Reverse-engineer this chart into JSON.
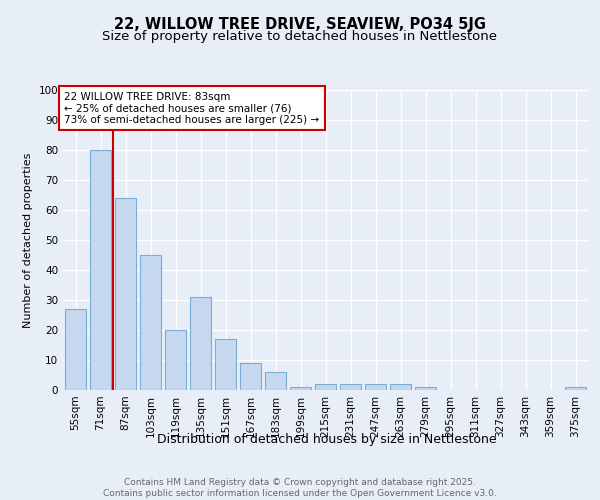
{
  "title1": "22, WILLOW TREE DRIVE, SEAVIEW, PO34 5JG",
  "title2": "Size of property relative to detached houses in Nettlestone",
  "xlabel": "Distribution of detached houses by size in Nettlestone",
  "ylabel": "Number of detached properties",
  "categories": [
    "55sqm",
    "71sqm",
    "87sqm",
    "103sqm",
    "119sqm",
    "135sqm",
    "151sqm",
    "167sqm",
    "183sqm",
    "199sqm",
    "215sqm",
    "231sqm",
    "247sqm",
    "263sqm",
    "279sqm",
    "295sqm",
    "311sqm",
    "327sqm",
    "343sqm",
    "359sqm",
    "375sqm"
  ],
  "values": [
    27,
    80,
    64,
    45,
    20,
    31,
    17,
    9,
    6,
    1,
    2,
    2,
    2,
    2,
    1,
    0,
    0,
    0,
    0,
    0,
    1
  ],
  "bar_color": "#c5d8f0",
  "bar_edge_color": "#7aadd4",
  "vline_x_idx": 1,
  "vline_color": "#cc0000",
  "annotation_text": "22 WILLOW TREE DRIVE: 83sqm\n← 25% of detached houses are smaller (76)\n73% of semi-detached houses are larger (225) →",
  "annotation_box_color": "#ffffff",
  "annotation_box_edge": "#cc0000",
  "ylim": [
    0,
    100
  ],
  "yticks": [
    0,
    10,
    20,
    30,
    40,
    50,
    60,
    70,
    80,
    90,
    100
  ],
  "bg_color": "#e8eef8",
  "footer_text": "Contains HM Land Registry data © Crown copyright and database right 2025.\nContains public sector information licensed under the Open Government Licence v3.0.",
  "grid_color": "#ffffff",
  "title_fontsize": 10.5,
  "subtitle_fontsize": 9.5,
  "xlabel_fontsize": 9,
  "ylabel_fontsize": 8,
  "tick_fontsize": 7.5,
  "annotation_fontsize": 7.5,
  "footer_fontsize": 6.5
}
